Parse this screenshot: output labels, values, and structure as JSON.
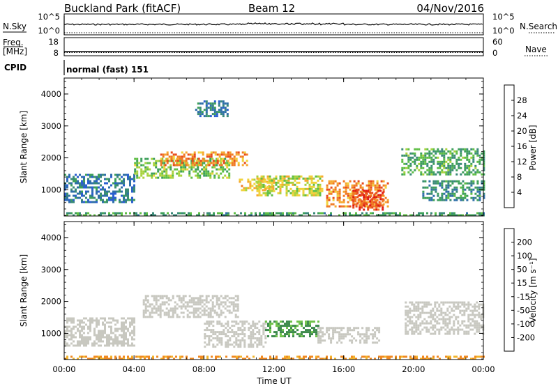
{
  "header": {
    "station": "Buckland Park (fitACF)",
    "beam": "Beam 12",
    "date": "04/Nov/2016"
  },
  "strips": {
    "nsky": {
      "label": "N.Sky",
      "ticks_left": [
        "10^5",
        "10^0"
      ],
      "ticks_right": [
        "10^5",
        "10^0"
      ],
      "right_label": "N.Search"
    },
    "freq": {
      "label_top": "Freq.",
      "label_bottom": "[MHz]",
      "ticks_left": [
        "18",
        "8"
      ],
      "ticks_right": [
        "60",
        "0"
      ],
      "right_label": "Nave"
    },
    "cpid": {
      "label": "CPID",
      "text": "normal (fast) 151"
    }
  },
  "chart_data": [
    {
      "type": "heatmap",
      "panel": "power",
      "xlabel": "Time UT",
      "ylabel": "Slant Range [km]",
      "x_ticks": [
        "00:00",
        "04:00",
        "08:00",
        "12:00",
        "16:00",
        "20:00",
        "00:00"
      ],
      "xlim_hours": [
        0,
        24
      ],
      "y_ticks": [
        1000,
        2000,
        3000,
        4000
      ],
      "ylim": [
        180,
        4500
      ],
      "colorbar": {
        "label": "Power [dB]",
        "ticks": [
          "4",
          "8",
          "12",
          "16",
          "20",
          "24",
          "28"
        ],
        "colors": [
          "#1f2df0",
          "#2a5fd0",
          "#2f6fa8",
          "#3a8a78",
          "#3ea05a",
          "#5fbe45",
          "#a8d23c",
          "#f0d23a",
          "#f6a82e",
          "#f07a24",
          "#e84a1c",
          "#e01b14"
        ]
      },
      "regions": [
        {
          "t0": 0.0,
          "t1": 24.0,
          "r0": 200,
          "r1": 300,
          "value": 12
        },
        {
          "t0": 0.0,
          "t1": 4.0,
          "r0": 600,
          "r1": 1500,
          "value": 8
        },
        {
          "t0": 4.0,
          "t1": 9.5,
          "r0": 1400,
          "r1": 2000,
          "value": 15
        },
        {
          "t0": 5.5,
          "t1": 10.5,
          "r0": 1800,
          "r1": 2200,
          "value": 24
        },
        {
          "t0": 7.5,
          "t1": 9.3,
          "r0": 3300,
          "r1": 3800,
          "value": 8
        },
        {
          "t0": 10.0,
          "t1": 12.0,
          "r0": 1000,
          "r1": 1350,
          "value": 20
        },
        {
          "t0": 11.0,
          "t1": 14.8,
          "r0": 800,
          "r1": 1450,
          "value": 18
        },
        {
          "t0": 15.0,
          "t1": 18.5,
          "r0": 500,
          "r1": 1300,
          "value": 24
        },
        {
          "t0": 16.5,
          "t1": 18.2,
          "r0": 400,
          "r1": 1000,
          "value": 28
        },
        {
          "t0": 19.3,
          "t1": 24.0,
          "r0": 1500,
          "r1": 2300,
          "value": 13
        },
        {
          "t0": 20.5,
          "t1": 24.0,
          "r0": 700,
          "r1": 1300,
          "value": 10
        }
      ]
    },
    {
      "type": "heatmap",
      "panel": "velocity",
      "xlabel": "Time UT",
      "ylabel": "Slant Range [km]",
      "x_ticks": [
        "00:00",
        "04:00",
        "08:00",
        "12:00",
        "16:00",
        "20:00",
        "00:00"
      ],
      "xlim_hours": [
        0,
        24
      ],
      "y_ticks": [
        1000,
        2000,
        3000,
        4000
      ],
      "ylim": [
        180,
        4500
      ],
      "colorbar": {
        "label": "Velocity [m s⁻¹]",
        "ticks": [
          "200",
          "100",
          "50",
          "15",
          "-15",
          "-50",
          "-100",
          "-200"
        ],
        "colors": [
          "#1e35c8",
          "#2f62b0",
          "#3d8a4c",
          "#6fc24a",
          "#c8c8c0",
          "#f2b42c",
          "#f08a22",
          "#e8581c",
          "#e01b14"
        ]
      },
      "regions": [
        {
          "t0": 0.0,
          "t1": 24.0,
          "r0": 200,
          "r1": 300,
          "value": -60
        },
        {
          "t0": 0.0,
          "t1": 4.0,
          "r0": 600,
          "r1": 1500,
          "value": 0
        },
        {
          "t0": 4.5,
          "t1": 10.0,
          "r0": 1500,
          "r1": 2200,
          "value": 0
        },
        {
          "t0": 8.0,
          "t1": 11.5,
          "r0": 600,
          "r1": 1400,
          "value": 0
        },
        {
          "t0": 11.5,
          "t1": 14.5,
          "r0": 900,
          "r1": 1400,
          "value": 60
        },
        {
          "t0": 14.5,
          "t1": 18.0,
          "r0": 700,
          "r1": 1200,
          "value": 0
        },
        {
          "t0": 19.5,
          "t1": 24.0,
          "r0": 1000,
          "r1": 2000,
          "value": 0
        }
      ]
    }
  ]
}
